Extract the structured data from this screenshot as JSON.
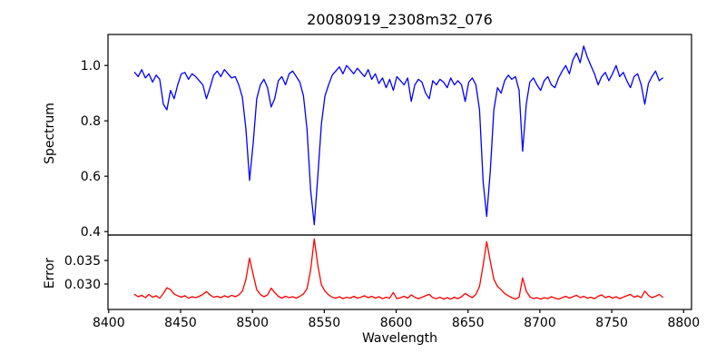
{
  "figure": {
    "title": "20080919_2308m32_076",
    "xlabel": "Wavelength",
    "ylabel_top": "Spectrum",
    "ylabel_bottom": "Error",
    "background_color": "#ffffff",
    "axis_color": "#000000",
    "spectrum_color": "#0000ff",
    "error_color": "#ff0000"
  },
  "chart_data": [
    {
      "type": "line",
      "panel": "top",
      "title": "20080919_2308m32_076",
      "ylabel": "Spectrum",
      "series_name": "spectrum",
      "color": "#0000ff",
      "grid": false,
      "legend": "none",
      "x_start": 8418,
      "x_step": 2.5,
      "xlim": [
        8399.5,
        8805.5
      ],
      "ylim": [
        0.3875,
        1.112
      ],
      "yticks": [
        0.4,
        0.6,
        0.8,
        1.0
      ],
      "ytick_labels": [
        "0.4",
        "0.6",
        "0.8",
        "1.0"
      ],
      "values": [
        0.975,
        0.96,
        0.985,
        0.955,
        0.97,
        0.94,
        0.965,
        0.95,
        0.86,
        0.84,
        0.91,
        0.88,
        0.93,
        0.97,
        0.975,
        0.95,
        0.97,
        0.96,
        0.945,
        0.93,
        0.88,
        0.92,
        0.965,
        0.98,
        0.96,
        0.985,
        0.97,
        0.955,
        0.96,
        0.93,
        0.885,
        0.77,
        0.585,
        0.72,
        0.88,
        0.93,
        0.95,
        0.92,
        0.85,
        0.88,
        0.945,
        0.96,
        0.93,
        0.97,
        0.98,
        0.96,
        0.94,
        0.89,
        0.77,
        0.55,
        0.425,
        0.6,
        0.79,
        0.89,
        0.93,
        0.965,
        0.98,
        0.995,
        0.97,
        1.0,
        0.985,
        0.97,
        0.99,
        0.975,
        0.96,
        0.985,
        0.95,
        0.97,
        0.935,
        0.955,
        0.92,
        0.95,
        0.91,
        0.96,
        0.945,
        0.93,
        0.955,
        0.87,
        0.93,
        0.95,
        0.94,
        0.9,
        0.88,
        0.945,
        0.93,
        0.95,
        0.94,
        0.92,
        0.955,
        0.93,
        0.945,
        0.93,
        0.87,
        0.94,
        0.955,
        0.93,
        0.84,
        0.58,
        0.455,
        0.62,
        0.84,
        0.92,
        0.9,
        0.945,
        0.965,
        0.95,
        0.96,
        0.91,
        0.69,
        0.86,
        0.94,
        0.955,
        0.93,
        0.91,
        0.945,
        0.96,
        0.93,
        0.92,
        0.955,
        0.98,
        1.0,
        0.97,
        1.02,
        1.045,
        1.01,
        1.07,
        1.03,
        1.0,
        0.97,
        0.93,
        0.96,
        0.975,
        0.945,
        0.97,
        1.0,
        0.96,
        0.975,
        0.945,
        0.92,
        0.96,
        0.97,
        0.93,
        0.86,
        0.935,
        0.96,
        0.98,
        0.945,
        0.955
      ]
    },
    {
      "type": "line",
      "panel": "bottom",
      "xlabel": "Wavelength",
      "ylabel": "Error",
      "series_name": "error",
      "color": "#ff0000",
      "grid": false,
      "legend": "none",
      "x_start": 8418,
      "x_step": 2.5,
      "xlim": [
        8399.5,
        8805.5
      ],
      "ylim": [
        0.0246,
        0.0404
      ],
      "xticks": [
        8400,
        8450,
        8500,
        8550,
        8600,
        8650,
        8700,
        8750,
        8800
      ],
      "xtick_labels": [
        "8400",
        "8450",
        "8500",
        "8550",
        "8600",
        "8650",
        "8700",
        "8750",
        "8800"
      ],
      "yticks": [
        0.03,
        0.035
      ],
      "ytick_labels": [
        "0.030",
        "0.035"
      ],
      "values": [
        0.0278,
        0.0273,
        0.0276,
        0.0271,
        0.0278,
        0.0272,
        0.0275,
        0.027,
        0.028,
        0.0292,
        0.0288,
        0.0279,
        0.0275,
        0.0272,
        0.0275,
        0.027,
        0.0273,
        0.0271,
        0.0274,
        0.0278,
        0.0284,
        0.0277,
        0.0272,
        0.0274,
        0.0271,
        0.0275,
        0.0272,
        0.0276,
        0.0273,
        0.0277,
        0.0285,
        0.031,
        0.0355,
        0.032,
        0.0288,
        0.0278,
        0.0273,
        0.0277,
        0.0291,
        0.0282,
        0.0274,
        0.027,
        0.0274,
        0.0271,
        0.0273,
        0.027,
        0.0274,
        0.0279,
        0.029,
        0.033,
        0.0396,
        0.034,
        0.0298,
        0.0285,
        0.0277,
        0.0272,
        0.027,
        0.0273,
        0.0269,
        0.0272,
        0.027,
        0.0274,
        0.027,
        0.0272,
        0.0275,
        0.0271,
        0.0274,
        0.027,
        0.0273,
        0.0269,
        0.0272,
        0.027,
        0.0282,
        0.0269,
        0.0271,
        0.0274,
        0.027,
        0.0277,
        0.0272,
        0.0269,
        0.0272,
        0.0275,
        0.0278,
        0.0271,
        0.0269,
        0.0272,
        0.0268,
        0.0271,
        0.0268,
        0.0272,
        0.0269,
        0.0273,
        0.028,
        0.0275,
        0.0271,
        0.0278,
        0.0295,
        0.034,
        0.039,
        0.0348,
        0.031,
        0.0295,
        0.0288,
        0.028,
        0.0275,
        0.0271,
        0.0268,
        0.0272,
        0.0313,
        0.0285,
        0.0273,
        0.0269,
        0.0271,
        0.0268,
        0.0271,
        0.0269,
        0.0273,
        0.027,
        0.0268,
        0.0271,
        0.0274,
        0.027,
        0.0273,
        0.0276,
        0.0271,
        0.0274,
        0.027,
        0.0272,
        0.0269,
        0.0274,
        0.0277,
        0.0271,
        0.0274,
        0.027,
        0.0273,
        0.0269,
        0.0272,
        0.0275,
        0.0278,
        0.0272,
        0.0275,
        0.0271,
        0.0285,
        0.0276,
        0.0271,
        0.0274,
        0.0278,
        0.0272
      ]
    }
  ]
}
